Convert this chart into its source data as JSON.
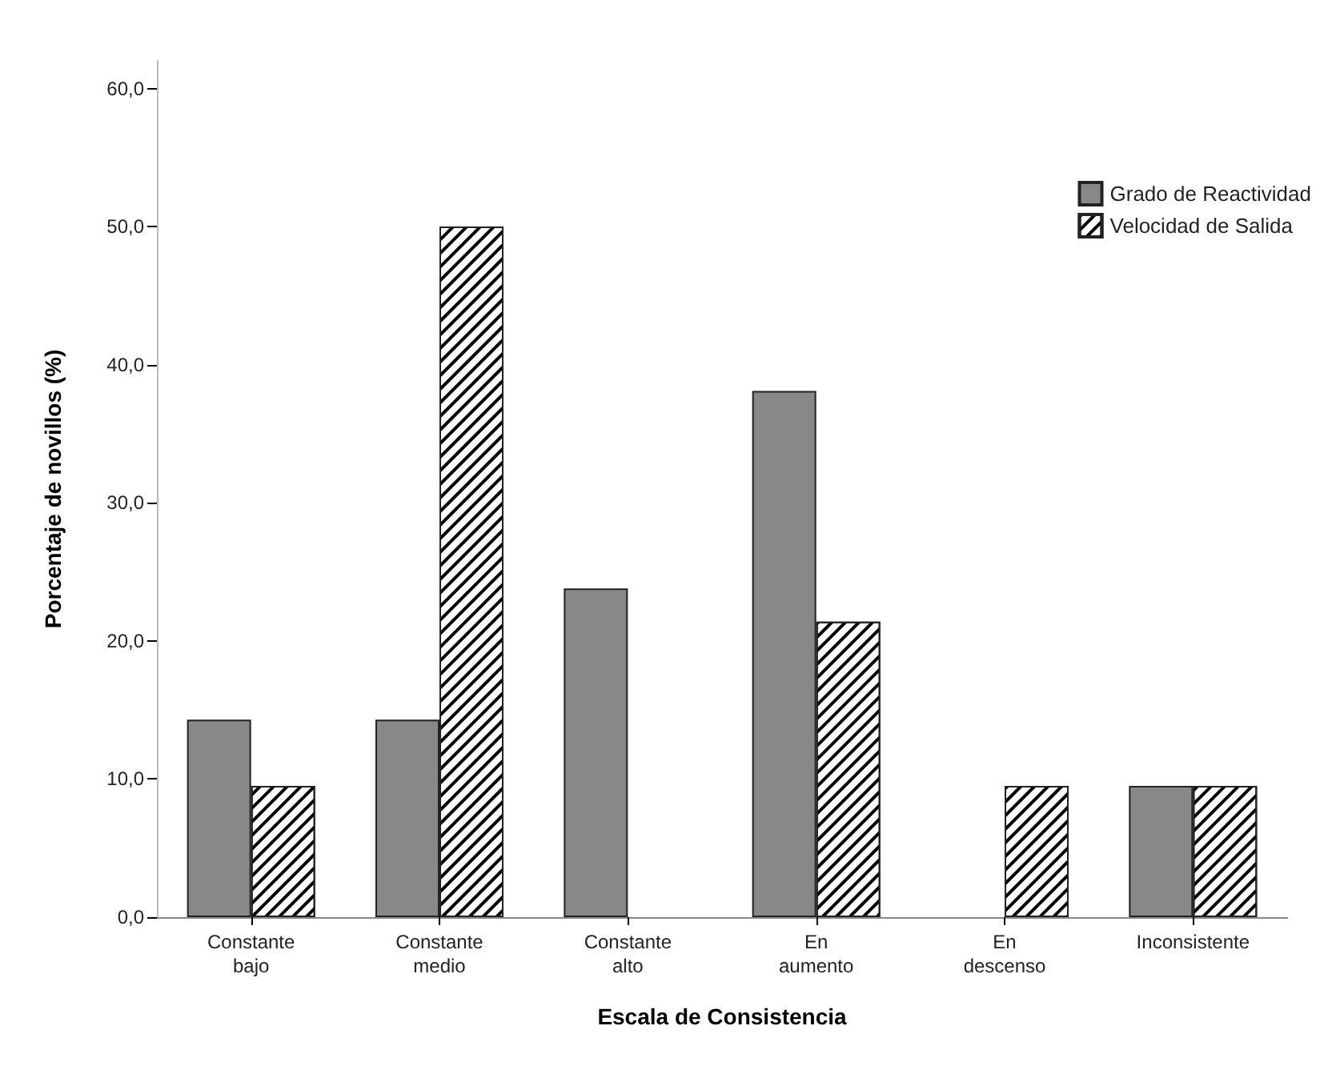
{
  "chart_data": {
    "type": "bar",
    "xlabel": "Escala de Consistencia",
    "ylabel": "Porcentaje de novillos (%)",
    "categories": [
      "Constante\nbajo",
      "Constante\nmedio",
      "Constante\nalto",
      "En\naumento",
      "En\ndescenso",
      "Inconsistente"
    ],
    "series": [
      {
        "name": "Grado de Reactividad",
        "color": "#888888",
        "values": [
          14.3,
          14.3,
          23.8,
          38.1,
          0,
          9.5
        ]
      },
      {
        "name": "Velocidad de Salida",
        "color": "#ffffff",
        "values": [
          9.5,
          50.0,
          0,
          21.4,
          9.5,
          9.5
        ]
      }
    ],
    "ylim": [
      0,
      62
    ],
    "yticks": [
      {
        "value": 0,
        "label": "0,0"
      },
      {
        "value": 10,
        "label": "10,0"
      },
      {
        "value": 20,
        "label": "20,0"
      },
      {
        "value": 30,
        "label": "30,0"
      },
      {
        "value": 40,
        "label": "40,0"
      },
      {
        "value": 50,
        "label": "50,0"
      },
      {
        "value": 60,
        "label": "60,0"
      }
    ],
    "grid": false,
    "legend": "top right"
  }
}
